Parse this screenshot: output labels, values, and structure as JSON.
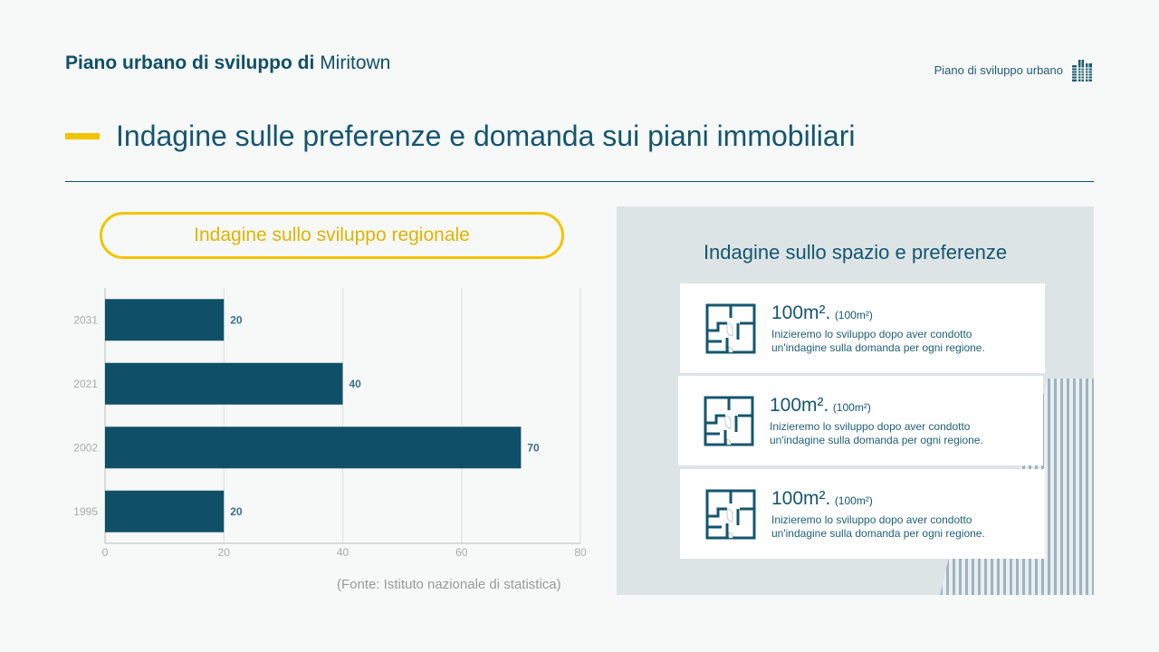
{
  "header": {
    "title_bold": "Piano urbano di sviluppo di",
    "title_light": "Miritown",
    "brand_label": "Piano di sviluppo urbano",
    "brand_icon": "building-icon"
  },
  "page_heading": "Indagine sulle preferenze e domanda sui piani immobiliari",
  "colors": {
    "primary": "#0f5068",
    "accent": "#f2c400",
    "bar": "#0f5068",
    "panel": "#dde4e6"
  },
  "left": {
    "pill_label": "Indagine sullo sviluppo regionale",
    "source": "(Fonte: Istituto nazionale di statistica)"
  },
  "chart_data": {
    "type": "bar",
    "orientation": "horizontal",
    "categories": [
      "2031",
      "2021",
      "2002",
      "1995"
    ],
    "values": [
      20,
      40,
      70,
      20
    ],
    "xlim": [
      0,
      80
    ],
    "xticks": [
      0,
      20,
      40,
      60,
      80
    ],
    "grid": true,
    "data_labels": true
  },
  "right": {
    "title": "Indagine sullo spazio e preferenze",
    "cards": [
      {
        "icon": "floor-plan-icon",
        "value": "100m².",
        "unit": "(100m²)",
        "desc1": "Inizieremo lo sviluppo dopo aver condotto",
        "desc2": "un'indagine sulla domanda per ogni regione."
      },
      {
        "icon": "floor-plan-icon",
        "value": "100m².",
        "unit": "(100m²)",
        "desc1": "Inizieremo lo sviluppo dopo aver condotto",
        "desc2": "un'indagine sulla domanda per ogni regione."
      },
      {
        "icon": "floor-plan-icon",
        "value": "100m².",
        "unit": "(100m²)",
        "desc1": "Inizieremo lo sviluppo dopo aver condotto",
        "desc2": "un'indagine sulla domanda per ogni regione."
      }
    ]
  }
}
